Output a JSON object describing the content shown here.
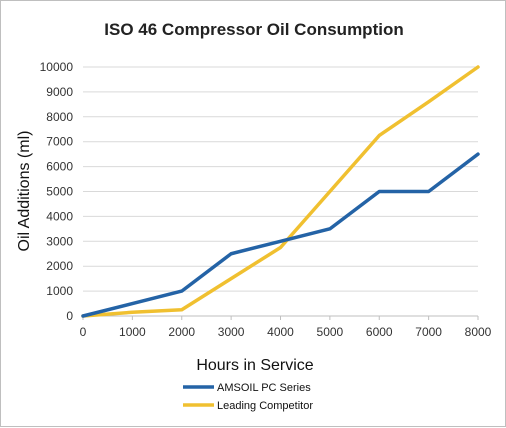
{
  "chart_data": {
    "type": "line",
    "title": "ISO 46 Compressor Oil Consumption",
    "xlabel": "Hours in Service",
    "ylabel": "Oil Additions (ml)",
    "x": [
      0,
      1000,
      2000,
      3000,
      4000,
      5000,
      6000,
      7000,
      8000
    ],
    "xlim": [
      0,
      8000
    ],
    "ylim": [
      0,
      10000
    ],
    "x_ticks": [
      "0",
      "1000",
      "2000",
      "3000",
      "4000",
      "5000",
      "6000",
      "7000",
      "8000"
    ],
    "y_ticks": [
      "0",
      "1000",
      "2000",
      "3000",
      "4000",
      "5000",
      "6000",
      "7000",
      "8000",
      "9000",
      "10000"
    ],
    "grid": "horizontal",
    "legend_position": "bottom",
    "series": [
      {
        "name": "AMSOIL PC Series",
        "color": "#2463a6",
        "values": [
          0,
          500,
          1000,
          2500,
          3000,
          3500,
          5000,
          5000,
          6500
        ]
      },
      {
        "name": "Leading Competitor",
        "color": "#f0c030",
        "values": [
          0,
          150,
          250,
          1500,
          2750,
          5000,
          7250,
          8600,
          10000
        ]
      }
    ]
  }
}
